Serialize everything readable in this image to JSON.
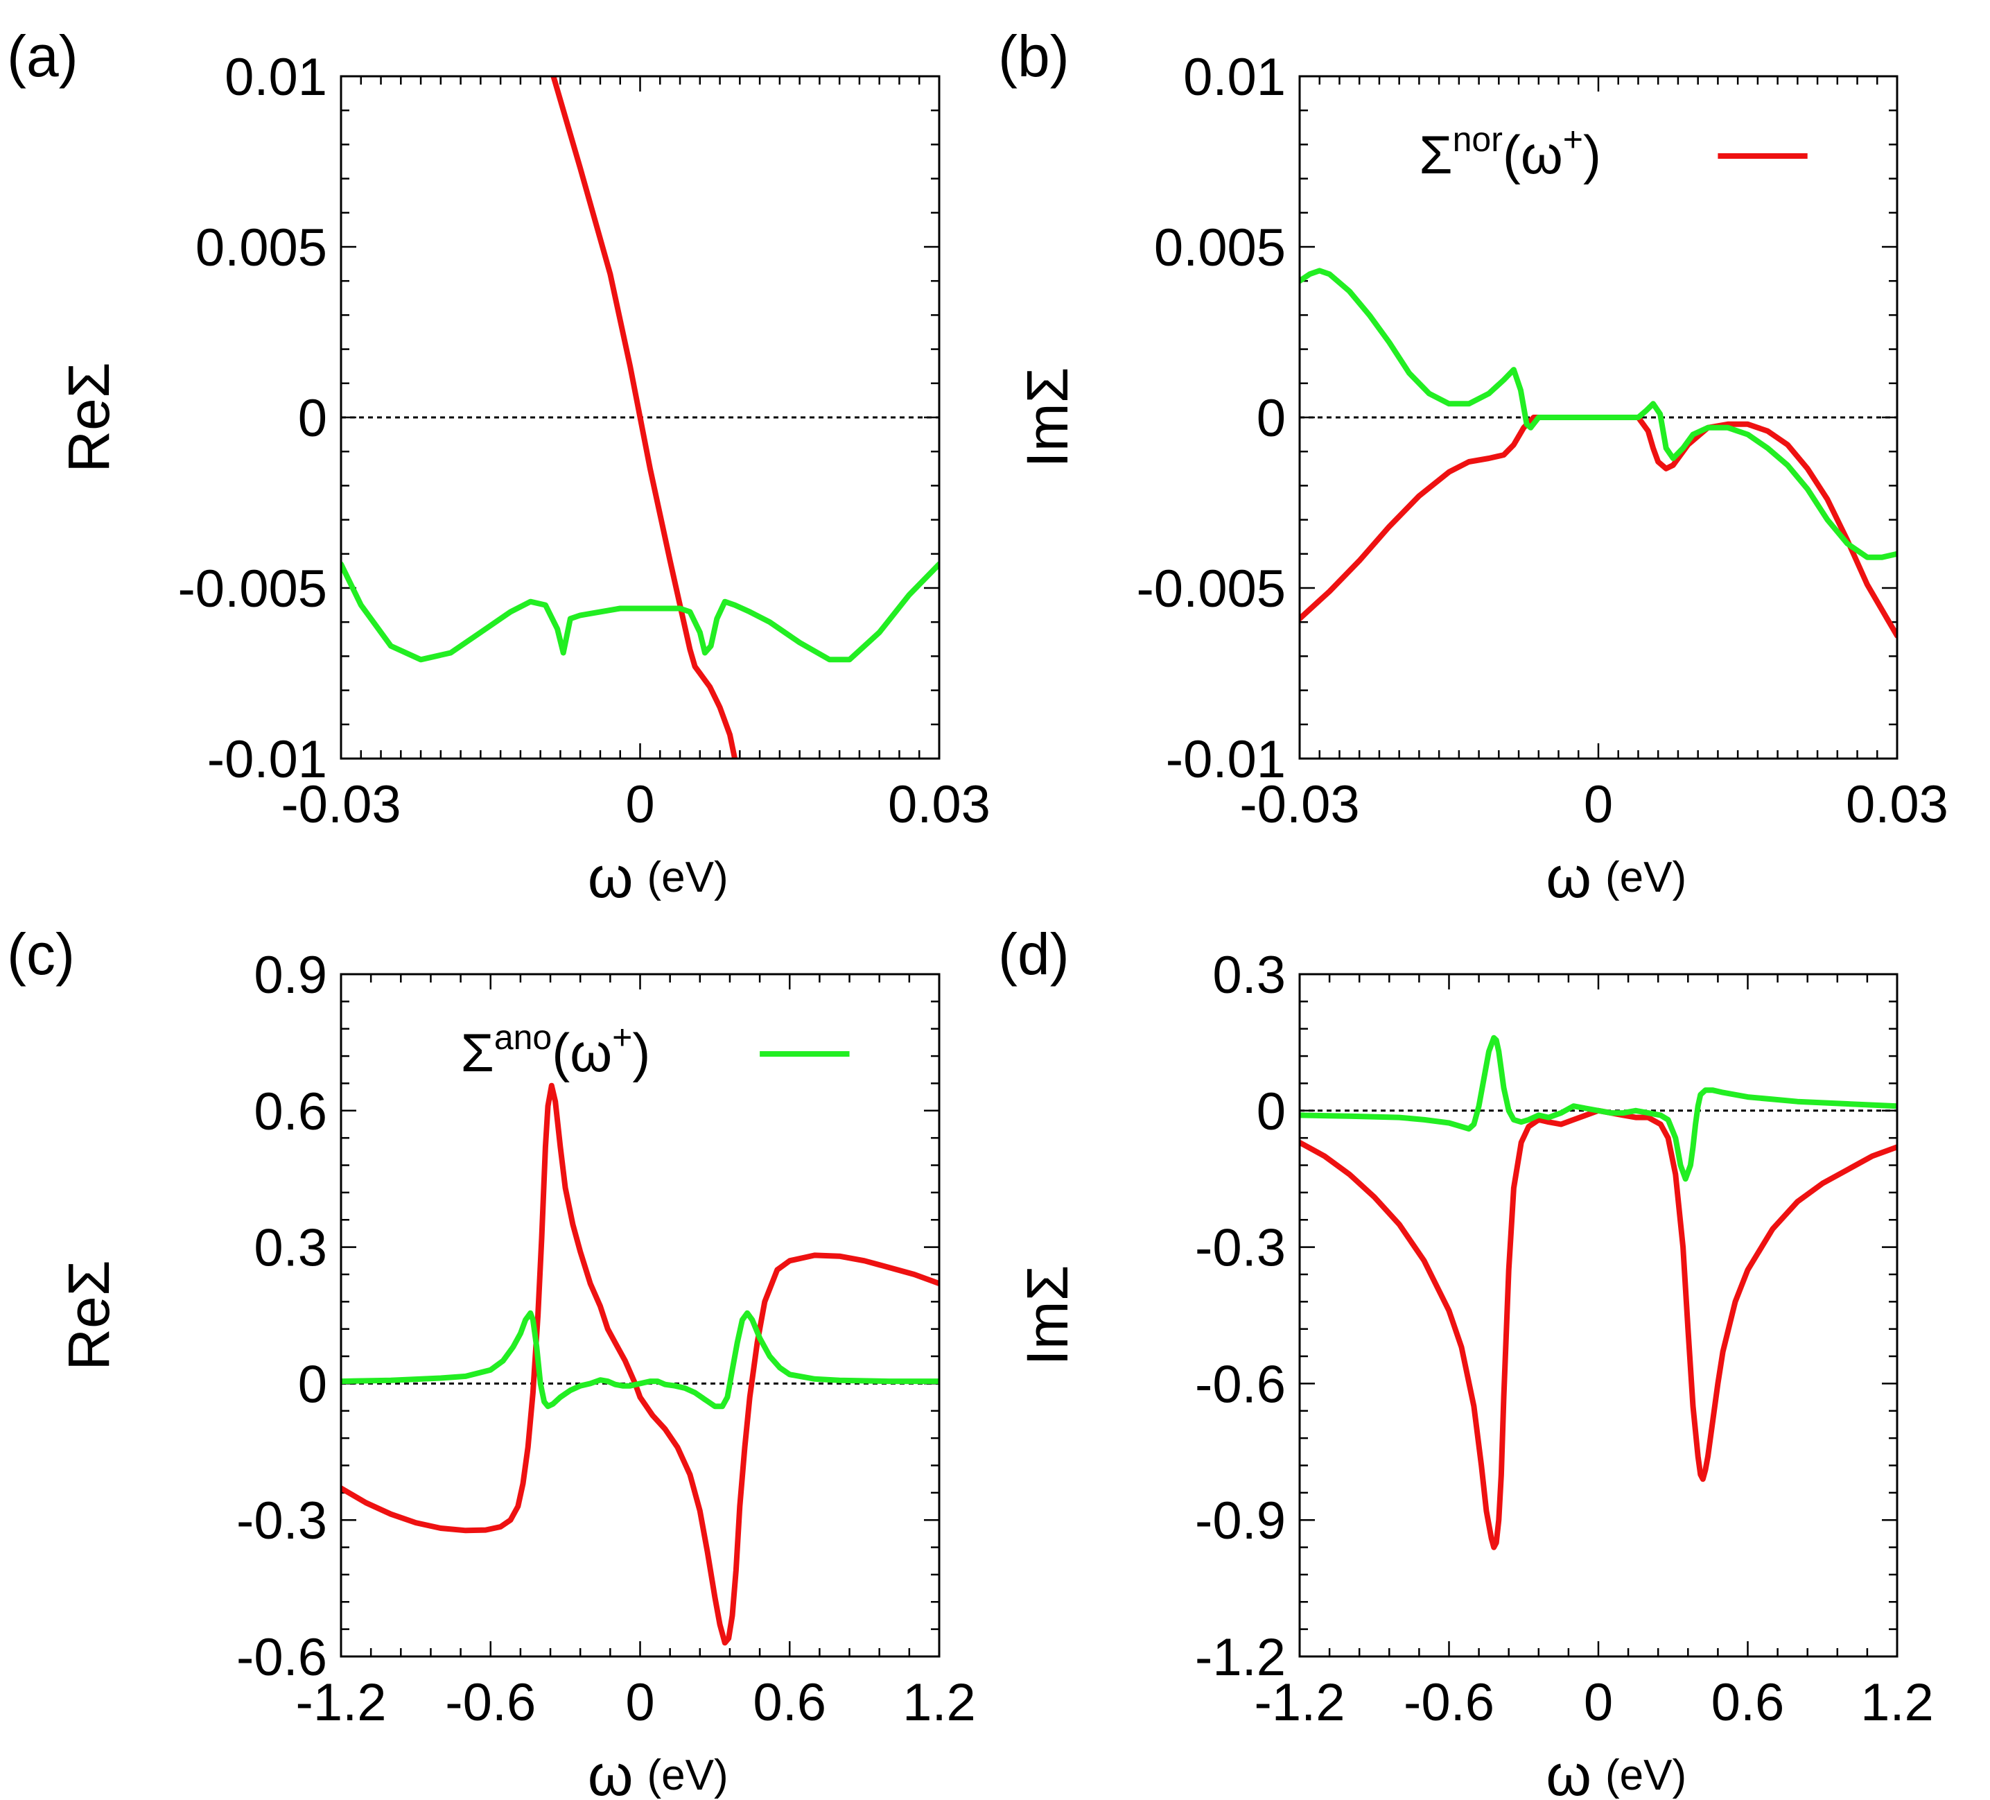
{
  "colors": {
    "normal": "#ee1111",
    "anomalous": "#22ee22",
    "axis": "#000000"
  },
  "x_unit": "(eV)",
  "legends": {
    "normal": {
      "base": "Σ",
      "sup": "nor",
      "arg": "(ω",
      "argsup": "+",
      "close": ")"
    },
    "anomalous": {
      "base": "Σ",
      "sup": "ano",
      "arg": "(ω",
      "argsup": "+",
      "close": ")"
    }
  },
  "chart_data": [
    {
      "panel": "(a)",
      "type": "line",
      "ylabel": "ReΣ",
      "xlabel": "ω",
      "xunit": "(eV)",
      "xlim": [
        -0.03,
        0.03
      ],
      "ylim": [
        -0.01,
        0.01
      ],
      "xticks": [
        -0.03,
        0,
        0.03
      ],
      "xtick_labels": [
        "-0.03",
        "0",
        "0.03"
      ],
      "yticks": [
        -0.01,
        -0.005,
        0,
        0.005,
        0.01
      ],
      "ytick_labels": [
        "-0.01",
        "-0.005",
        "0",
        "0.005",
        "0.01"
      ],
      "legend": null,
      "series": [
        {
          "name": "Σnor(ω+)",
          "color": "#ee1111",
          "x": [
            -0.0087,
            -0.006,
            -0.003,
            -0.001,
            0,
            0.001,
            0.003,
            0.004,
            0.005,
            0.0055,
            0.006,
            0.007,
            0.008,
            0.009,
            0.0095
          ],
          "y": [
            0.01,
            0.0073,
            0.0042,
            0.0015,
            0.0,
            -0.0015,
            -0.0042,
            -0.0055,
            -0.0068,
            -0.0073,
            -0.0075,
            -0.0079,
            -0.0085,
            -0.0093,
            -0.01
          ]
        },
        {
          "name": "Σano(ω+)",
          "color": "#22ee22",
          "x": [
            -0.03,
            -0.028,
            -0.025,
            -0.022,
            -0.019,
            -0.016,
            -0.013,
            -0.011,
            -0.0095,
            -0.0083,
            -0.0077,
            -0.007,
            -0.006,
            -0.004,
            -0.002,
            0,
            0.002,
            0.004,
            0.005,
            0.006,
            0.0065,
            0.0071,
            0.0077,
            0.0085,
            0.0095,
            0.011,
            0.013,
            0.016,
            0.019,
            0.021,
            0.024,
            0.027,
            0.03
          ],
          "y": [
            -0.0043,
            -0.0055,
            -0.0067,
            -0.0071,
            -0.0069,
            -0.0063,
            -0.0057,
            -0.0054,
            -0.0055,
            -0.0062,
            -0.0069,
            -0.0059,
            -0.0058,
            -0.0057,
            -0.0056,
            -0.0056,
            -0.0056,
            -0.0056,
            -0.0057,
            -0.0063,
            -0.0069,
            -0.0067,
            -0.0059,
            -0.0054,
            -0.0055,
            -0.0057,
            -0.006,
            -0.0066,
            -0.0071,
            -0.0071,
            -0.0063,
            -0.0052,
            -0.0043
          ]
        }
      ]
    },
    {
      "panel": "(b)",
      "type": "line",
      "ylabel": "ImΣ",
      "xlabel": "ω",
      "xunit": "(eV)",
      "xlim": [
        -0.03,
        0.03
      ],
      "ylim": [
        -0.01,
        0.01
      ],
      "xticks": [
        -0.03,
        0,
        0.03
      ],
      "xtick_labels": [
        "-0.03",
        "0",
        "0.03"
      ],
      "yticks": [
        -0.01,
        -0.005,
        0,
        0.005,
        0.01
      ],
      "ytick_labels": [
        "-0.01",
        "-0.005",
        "0",
        "0.005",
        "0.01"
      ],
      "legend": "normal",
      "series": [
        {
          "name": "Σnor(ω+)",
          "color": "#ee1111",
          "x": [
            -0.03,
            -0.027,
            -0.024,
            -0.021,
            -0.018,
            -0.015,
            -0.013,
            -0.011,
            -0.0095,
            -0.0085,
            -0.0075,
            -0.0065,
            -0.004,
            0,
            0.004,
            0.005,
            0.0055,
            0.006,
            0.0068,
            0.0075,
            0.009,
            0.011,
            0.013,
            0.015,
            0.017,
            0.019,
            0.021,
            0.023,
            0.025,
            0.027,
            0.029,
            0.03
          ],
          "y": [
            -0.0059,
            -0.0051,
            -0.0042,
            -0.0032,
            -0.0023,
            -0.0016,
            -0.0013,
            -0.0012,
            -0.0011,
            -0.0008,
            -0.0003,
            0.0,
            0.0,
            0.0,
            0.0,
            -0.0004,
            -0.0009,
            -0.0013,
            -0.0015,
            -0.0014,
            -0.0008,
            -0.0003,
            -0.0002,
            -0.0002,
            -0.0004,
            -0.0008,
            -0.0015,
            -0.0024,
            -0.0036,
            -0.0049,
            -0.0059,
            -0.0064
          ]
        },
        {
          "name": "Σano(ω+)",
          "color": "#22ee22",
          "x": [
            -0.03,
            -0.029,
            -0.028,
            -0.027,
            -0.025,
            -0.023,
            -0.021,
            -0.019,
            -0.017,
            -0.015,
            -0.013,
            -0.011,
            -0.0095,
            -0.0085,
            -0.0078,
            -0.0072,
            -0.0068,
            -0.006,
            -0.004,
            0,
            0.004,
            0.0048,
            0.0055,
            0.0062,
            0.0068,
            0.0075,
            0.0085,
            0.0095,
            0.011,
            0.013,
            0.015,
            0.017,
            0.019,
            0.021,
            0.023,
            0.025,
            0.027,
            0.0285,
            0.03
          ],
          "y": [
            0.004,
            0.0042,
            0.0043,
            0.0042,
            0.0037,
            0.003,
            0.0022,
            0.0013,
            0.0007,
            0.0004,
            0.0004,
            0.0007,
            0.0011,
            0.0014,
            0.0008,
            -0.0002,
            -0.0003,
            0.0,
            0.0,
            0.0,
            0.0,
            0.0002,
            0.0004,
            0.0001,
            -0.0009,
            -0.0012,
            -0.0009,
            -0.0005,
            -0.0003,
            -0.0003,
            -0.0005,
            -0.0009,
            -0.0014,
            -0.0021,
            -0.003,
            -0.0037,
            -0.0041,
            -0.0041,
            -0.004
          ]
        }
      ]
    },
    {
      "panel": "(c)",
      "type": "line",
      "ylabel": "ReΣ",
      "xlabel": "ω",
      "xunit": "(eV)",
      "xlim": [
        -1.2,
        1.2
      ],
      "ylim": [
        -0.6,
        0.9
      ],
      "xticks": [
        -1.2,
        -0.6,
        0,
        0.6,
        1.2
      ],
      "xtick_labels": [
        "-1.2",
        "-0.6",
        "0",
        "0.6",
        "1.2"
      ],
      "yticks": [
        -0.6,
        -0.3,
        0,
        0.3,
        0.6,
        0.9
      ],
      "ytick_labels": [
        "-0.6",
        "-0.3",
        "0",
        "0.3",
        "0.6",
        "0.9"
      ],
      "legend": "anomalous",
      "series": [
        {
          "name": "Σnor(ω+)",
          "color": "#ee1111",
          "x": [
            -1.2,
            -1.1,
            -1.0,
            -0.9,
            -0.8,
            -0.7,
            -0.62,
            -0.56,
            -0.52,
            -0.49,
            -0.47,
            -0.45,
            -0.43,
            -0.41,
            -0.395,
            -0.38,
            -0.37,
            -0.355,
            -0.34,
            -0.32,
            -0.3,
            -0.27,
            -0.24,
            -0.2,
            -0.16,
            -0.13,
            -0.1,
            -0.06,
            -0.02,
            0.0,
            0.05,
            0.1,
            0.15,
            0.2,
            0.24,
            0.27,
            0.3,
            0.32,
            0.34,
            0.355,
            0.37,
            0.385,
            0.4,
            0.42,
            0.44,
            0.47,
            0.5,
            0.55,
            0.6,
            0.7,
            0.8,
            0.9,
            1.0,
            1.1,
            1.2
          ],
          "y": [
            -0.23,
            -0.262,
            -0.287,
            -0.306,
            -0.318,
            -0.323,
            -0.322,
            -0.315,
            -0.3,
            -0.27,
            -0.22,
            -0.14,
            -0.02,
            0.15,
            0.32,
            0.52,
            0.61,
            0.655,
            0.62,
            0.52,
            0.43,
            0.35,
            0.29,
            0.22,
            0.17,
            0.12,
            0.09,
            0.05,
            0.0,
            -0.03,
            -0.07,
            -0.1,
            -0.14,
            -0.2,
            -0.28,
            -0.37,
            -0.47,
            -0.53,
            -0.57,
            -0.56,
            -0.51,
            -0.41,
            -0.27,
            -0.14,
            -0.03,
            0.09,
            0.18,
            0.25,
            0.27,
            0.282,
            0.28,
            0.27,
            0.255,
            0.24,
            0.22
          ]
        },
        {
          "name": "Σano(ω+)",
          "color": "#22ee22",
          "x": [
            -1.2,
            -1.0,
            -0.8,
            -0.7,
            -0.6,
            -0.55,
            -0.51,
            -0.48,
            -0.46,
            -0.44,
            -0.43,
            -0.415,
            -0.4,
            -0.385,
            -0.37,
            -0.35,
            -0.32,
            -0.28,
            -0.24,
            -0.2,
            -0.16,
            -0.13,
            -0.1,
            -0.07,
            -0.04,
            0.0,
            0.04,
            0.07,
            0.1,
            0.14,
            0.18,
            0.22,
            0.26,
            0.3,
            0.33,
            0.35,
            0.37,
            0.39,
            0.41,
            0.43,
            0.45,
            0.48,
            0.52,
            0.56,
            0.6,
            0.7,
            0.8,
            1.0,
            1.2
          ],
          "y": [
            0.005,
            0.007,
            0.012,
            0.016,
            0.03,
            0.05,
            0.08,
            0.11,
            0.14,
            0.155,
            0.14,
            0.08,
            0.0,
            -0.04,
            -0.05,
            -0.045,
            -0.03,
            -0.015,
            -0.005,
            0.0,
            0.008,
            0.005,
            -0.002,
            -0.005,
            -0.005,
            0.0,
            0.005,
            0.005,
            -0.002,
            -0.005,
            -0.01,
            -0.02,
            -0.035,
            -0.05,
            -0.05,
            -0.03,
            0.03,
            0.09,
            0.14,
            0.155,
            0.14,
            0.1,
            0.06,
            0.035,
            0.02,
            0.01,
            0.007,
            0.005,
            0.005
          ]
        }
      ]
    },
    {
      "panel": "(d)",
      "type": "line",
      "ylabel": "ImΣ",
      "xlabel": "ω",
      "xunit": "(eV)",
      "xlim": [
        -1.2,
        1.2
      ],
      "ylim": [
        -1.2,
        0.3
      ],
      "xticks": [
        -1.2,
        -0.6,
        0,
        0.6,
        1.2
      ],
      "xtick_labels": [
        "-1.2",
        "-0.6",
        "0",
        "0.6",
        "1.2"
      ],
      "yticks": [
        -1.2,
        -0.9,
        -0.6,
        -0.3,
        0,
        0.3
      ],
      "ytick_labels": [
        "-1.2",
        "-0.9",
        "-0.6",
        "-0.3",
        "0",
        "0.3"
      ],
      "legend": null,
      "series": [
        {
          "name": "Σnor(ω+)",
          "color": "#ee1111",
          "x": [
            -1.2,
            -1.1,
            -1.0,
            -0.9,
            -0.8,
            -0.7,
            -0.6,
            -0.55,
            -0.5,
            -0.47,
            -0.45,
            -0.43,
            -0.42,
            -0.41,
            -0.4,
            -0.39,
            -0.38,
            -0.36,
            -0.34,
            -0.31,
            -0.28,
            -0.24,
            -0.2,
            -0.15,
            -0.1,
            -0.05,
            0.0,
            0.05,
            0.1,
            0.15,
            0.2,
            0.25,
            0.28,
            0.31,
            0.34,
            0.36,
            0.38,
            0.4,
            0.41,
            0.42,
            0.43,
            0.44,
            0.46,
            0.48,
            0.5,
            0.55,
            0.6,
            0.7,
            0.8,
            0.9,
            1.0,
            1.1,
            1.2
          ],
          "y": [
            -0.07,
            -0.1,
            -0.14,
            -0.19,
            -0.25,
            -0.33,
            -0.44,
            -0.52,
            -0.65,
            -0.78,
            -0.88,
            -0.94,
            -0.96,
            -0.95,
            -0.9,
            -0.8,
            -0.63,
            -0.35,
            -0.17,
            -0.07,
            -0.035,
            -0.02,
            -0.025,
            -0.03,
            -0.02,
            -0.01,
            0.0,
            -0.005,
            -0.01,
            -0.015,
            -0.015,
            -0.03,
            -0.06,
            -0.14,
            -0.3,
            -0.48,
            -0.65,
            -0.76,
            -0.8,
            -0.81,
            -0.79,
            -0.76,
            -0.68,
            -0.6,
            -0.53,
            -0.42,
            -0.35,
            -0.26,
            -0.2,
            -0.16,
            -0.13,
            -0.1,
            -0.08
          ]
        },
        {
          "name": "Σano(ω+)",
          "color": "#22ee22",
          "x": [
            -1.2,
            -1.0,
            -0.8,
            -0.7,
            -0.6,
            -0.55,
            -0.52,
            -0.5,
            -0.48,
            -0.46,
            -0.44,
            -0.42,
            -0.41,
            -0.4,
            -0.39,
            -0.38,
            -0.36,
            -0.34,
            -0.31,
            -0.28,
            -0.24,
            -0.2,
            -0.15,
            -0.1,
            -0.05,
            0.0,
            0.05,
            0.1,
            0.15,
            0.2,
            0.25,
            0.28,
            0.31,
            0.33,
            0.35,
            0.37,
            0.38,
            0.39,
            0.4,
            0.41,
            0.43,
            0.46,
            0.5,
            0.55,
            0.6,
            0.7,
            0.8,
            1.0,
            1.2
          ],
          "y": [
            -0.01,
            -0.012,
            -0.015,
            -0.02,
            -0.027,
            -0.035,
            -0.04,
            -0.03,
            0.01,
            0.07,
            0.13,
            0.16,
            0.155,
            0.13,
            0.09,
            0.05,
            0.0,
            -0.02,
            -0.025,
            -0.02,
            -0.01,
            -0.015,
            -0.005,
            0.01,
            0.005,
            0.0,
            -0.005,
            -0.005,
            0.0,
            -0.005,
            -0.01,
            -0.02,
            -0.06,
            -0.12,
            -0.15,
            -0.12,
            -0.08,
            -0.03,
            0.01,
            0.035,
            0.045,
            0.045,
            0.04,
            0.035,
            0.03,
            0.025,
            0.02,
            0.015,
            0.01
          ]
        }
      ]
    }
  ]
}
